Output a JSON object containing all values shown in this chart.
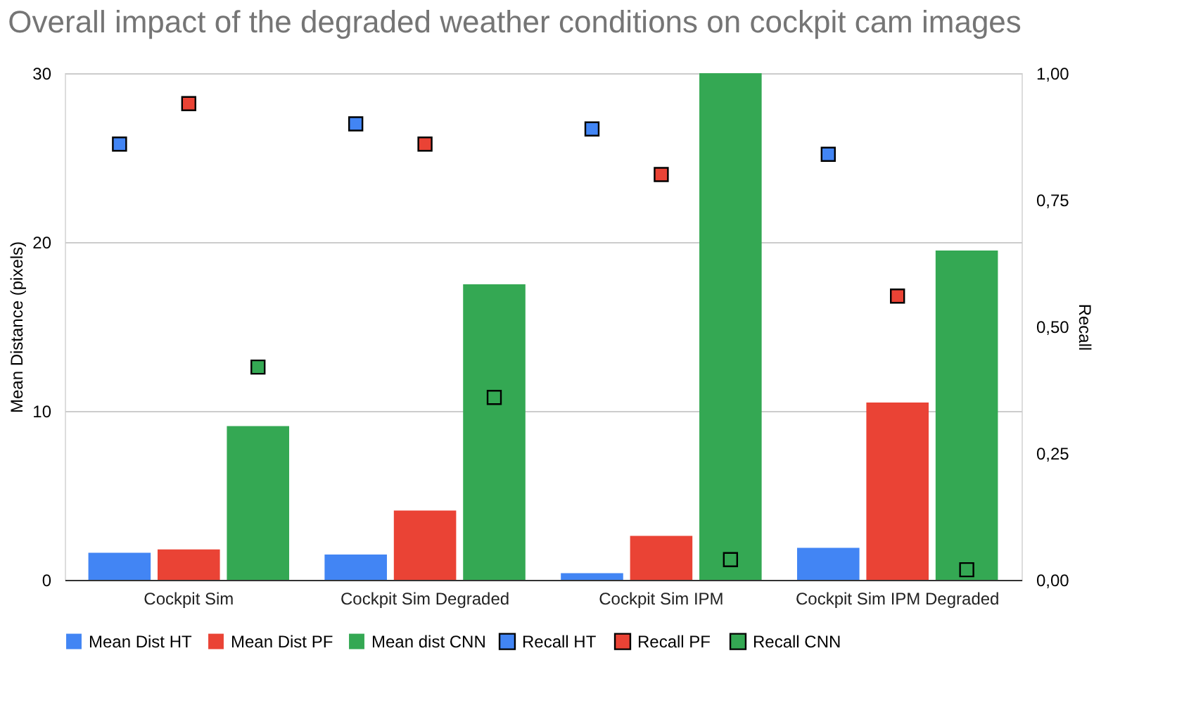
{
  "chart_data": {
    "type": "bar",
    "title": "Overall impact of the degraded weather conditions on cockpit cam images",
    "categories": [
      "Cockpit Sim",
      "Cockpit Sim Degraded",
      "Cockpit Sim IPM",
      "Cockpit Sim IPM Degraded"
    ],
    "series": [
      {
        "name": "Mean Dist HT",
        "color": "#4285f4",
        "values": [
          1.6,
          1.5,
          0.4,
          1.9
        ]
      },
      {
        "name": "Mean Dist PF",
        "color": "#ea4335",
        "values": [
          1.8,
          4.1,
          2.6,
          10.5
        ]
      },
      {
        "name": "Mean dist CNN",
        "color": "#34a853",
        "values": [
          9.1,
          17.5,
          30,
          19.5
        ]
      },
      {
        "name": "Recall HT",
        "type": "scatter",
        "axis": "y2",
        "color": "#4285f4",
        "values": [
          0.86,
          0.9,
          0.89,
          0.84
        ]
      },
      {
        "name": "Recall PF",
        "type": "scatter",
        "axis": "y2",
        "color": "#ea4335",
        "values": [
          0.94,
          0.86,
          0.8,
          0.56
        ]
      },
      {
        "name": "Recall CNN",
        "type": "scatter",
        "axis": "y2",
        "color": "#34a853",
        "values": [
          0.42,
          0.36,
          0.04,
          0.02
        ]
      }
    ],
    "ylabel": "Mean Distance (pixels)",
    "y2label": "Recall",
    "ylim": [
      0,
      30
    ],
    "yticks": [
      0,
      10,
      20,
      30
    ],
    "y2lim": [
      0,
      1
    ],
    "y2ticks": [
      {
        "value": 0,
        "label": "0,00"
      },
      {
        "value": 0.25,
        "label": "0,25"
      },
      {
        "value": 0.5,
        "label": "0,50"
      },
      {
        "value": 0.75,
        "label": "0,75"
      },
      {
        "value": 1,
        "label": "1,00"
      }
    ],
    "grid": "y",
    "legend": "bottom",
    "marker": "square"
  }
}
